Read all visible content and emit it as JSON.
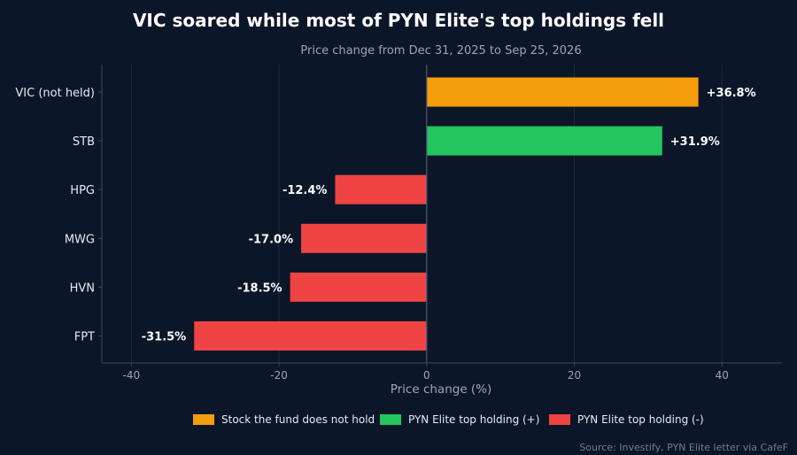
{
  "chart_data": {
    "type": "bar",
    "orientation": "horizontal",
    "title": "VIC soared while most of PYN Elite's top holdings fell",
    "subtitle": "Price change from Dec 31, 2025 to Sep 25, 2026",
    "xlabel": "Price change (%)",
    "ylabel": "",
    "xlim": [
      -44,
      48
    ],
    "xticks": [
      -40,
      -20,
      0,
      20,
      40
    ],
    "xtick_labels": [
      "-40",
      "-20",
      "0",
      "20",
      "40"
    ],
    "grid": true,
    "categories": [
      "VIC (not held)",
      "STB",
      "HPG",
      "MWG",
      "HVN",
      "FPT"
    ],
    "values": [
      36.8,
      31.9,
      -12.4,
      -17.0,
      -18.5,
      -31.5
    ],
    "value_labels": [
      "+36.8%",
      "+31.9%",
      "-12.4%",
      "-17.0%",
      "-18.5%",
      "-31.5%"
    ],
    "bar_groups": [
      "not_held",
      "positive",
      "negative",
      "negative",
      "negative",
      "negative"
    ],
    "legend": {
      "position": "bottom",
      "entries": [
        {
          "key": "not_held",
          "label": "Stock the fund does not hold",
          "color": "#f59e0b"
        },
        {
          "key": "positive",
          "label": "PYN Elite top holding (+)",
          "color": "#22c55e"
        },
        {
          "key": "negative",
          "label": "PYN Elite top holding (-)",
          "color": "#ef4444"
        }
      ]
    },
    "source": "Source: Investify, PYN Elite letter via CafeF"
  },
  "colors": {
    "background": "#0b1628",
    "grid": "#1c2a40",
    "axis": "#3a4a62",
    "zero_line": "#4a5a72"
  }
}
